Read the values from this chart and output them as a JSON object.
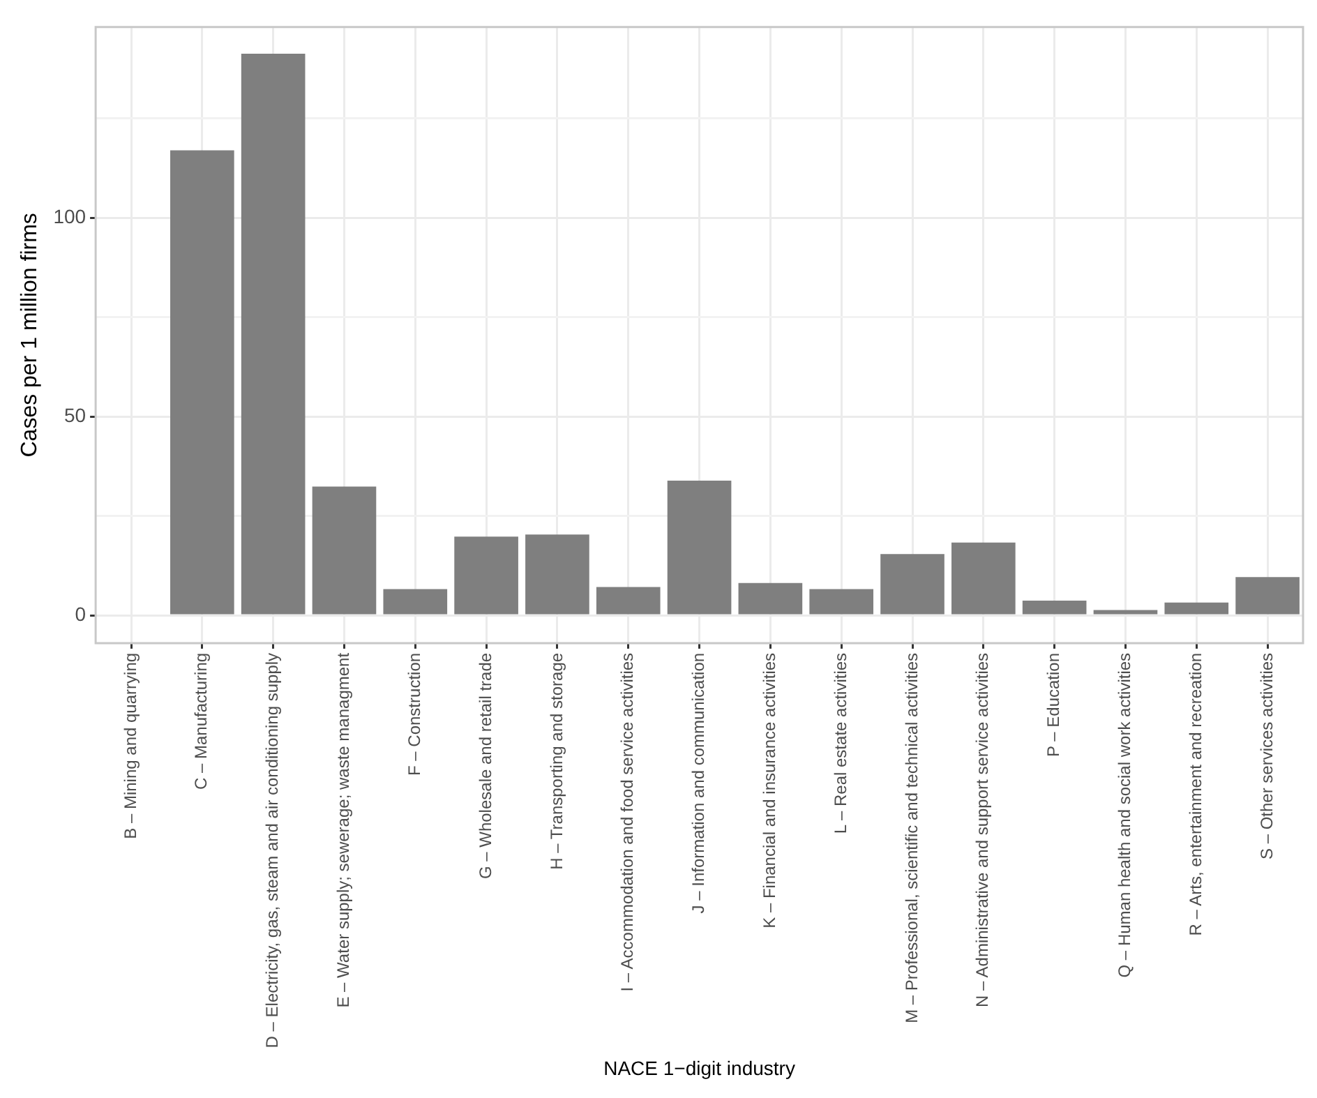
{
  "chart_data": {
    "type": "bar",
    "xlabel": "NACE 1−digit industry",
    "ylabel": "Cases per 1 million firms",
    "categories": [
      "B – Mining and quarrying",
      "C – Manufacturing",
      "D – Electricity, gas, steam and air conditioning supply",
      "E – Water supply; sewerage; waste managment",
      "F – Construction",
      "G – Wholesale and retail trade",
      "H – Transporting and storage",
      "I – Accommodation and food service activities",
      "J – Information and communication",
      "K – Financial and insurance activities",
      "L – Real estate activities",
      "M – Professional, scientific and technical activities",
      "N – Administrative and support service activities",
      "P – Education",
      "Q – Human health and social work activities",
      "R – Arts, entertainment and recreation",
      "S – Other services activities"
    ],
    "values": [
      0,
      117,
      141.3,
      32.4,
      6.6,
      19.8,
      20.3,
      7.1,
      33.9,
      8.1,
      6.6,
      15.4,
      18.3,
      3.7,
      1.3,
      3.2,
      9.6
    ],
    "color": "#7f7f7f",
    "ylim": [
      -7,
      148
    ],
    "yticks": [
      0,
      {
        "value": 25,
        "label": null
      },
      50,
      {
        "value": 75,
        "label": null
      },
      100,
      {
        "value": 125,
        "label": null
      }
    ],
    "grid": true
  }
}
